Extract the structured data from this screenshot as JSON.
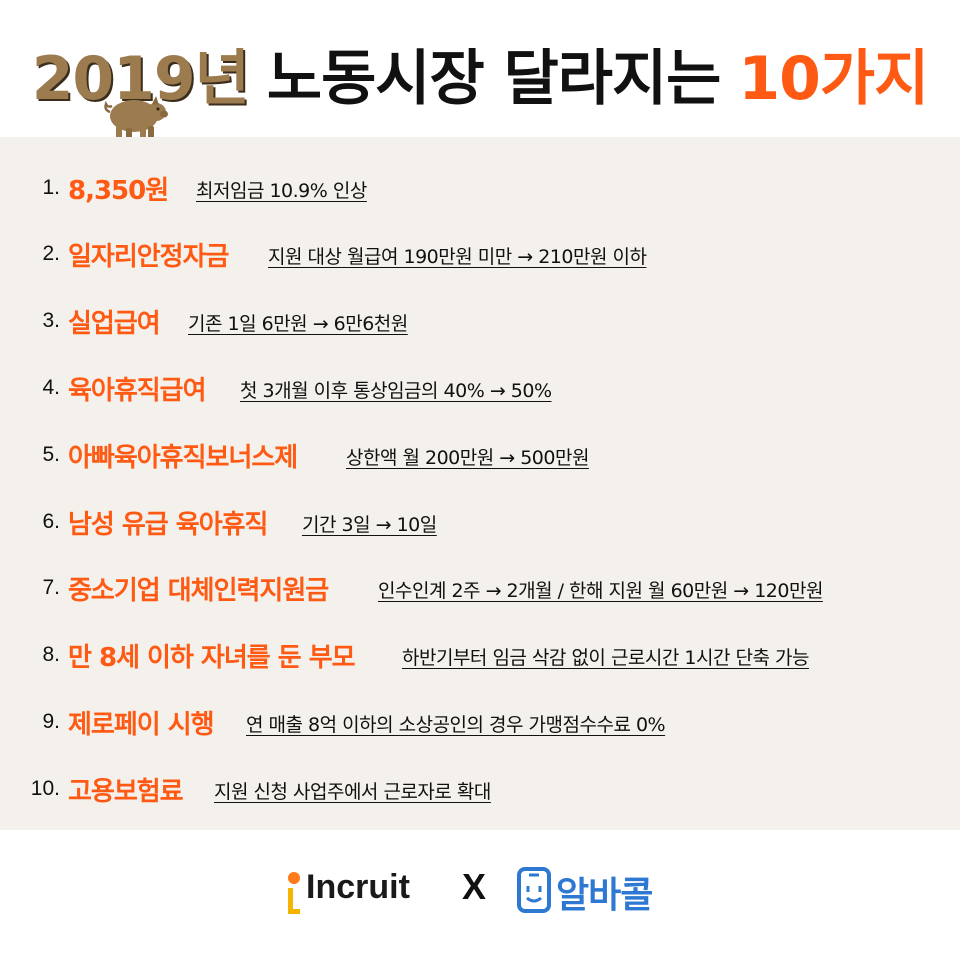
{
  "header": {
    "year": "2019년",
    "main": "노동시장 달라지는",
    "count": "10가지",
    "mascot_icon": "pig-icon"
  },
  "items": [
    {
      "num": "1.",
      "keyword": "8,350원",
      "desc": "최저임금 10.9% 인상"
    },
    {
      "num": "2.",
      "keyword": "일자리안정자금",
      "desc": "지원 대상 월급여 190만원 미만 → 210만원 이하"
    },
    {
      "num": "3.",
      "keyword": "실업급여",
      "desc": "기존 1일 6만원 → 6만6천원"
    },
    {
      "num": "4.",
      "keyword": "육아휴직급여",
      "desc": "첫 3개월 이후 통상임금의 40% → 50%"
    },
    {
      "num": "5.",
      "keyword": "아빠육아휴직보너스제",
      "desc": "상한액 월 200만원 → 500만원"
    },
    {
      "num": "6.",
      "keyword": "남성 유급 육아휴직",
      "desc": "기간 3일 → 10일"
    },
    {
      "num": "7.",
      "keyword": "중소기업 대체인력지원금",
      "desc": "인수인계 2주 → 2개월 / 한해 지원 월 60만원 → 120만원"
    },
    {
      "num": "8.",
      "keyword": "만 8세 이하 자녀를 둔 부모",
      "desc": "하반기부터 임금 삭감 없이 근로시간 1시간 단축 가능"
    },
    {
      "num": "9.",
      "keyword": "제로페이 시행",
      "desc": "연 매출 8억 이하의 소상공인의 경우 가맹점수수료 0%"
    },
    {
      "num": "10.",
      "keyword": "고용보험료",
      "desc": "지원 신청 사업주에서 근로자로 확대"
    }
  ],
  "footer": {
    "brand1": "Incruit",
    "separator": "X",
    "brand2": "알바콜",
    "brand2_icon": "phone-face-icon"
  },
  "colors": {
    "accent": "#ff5a14",
    "year": "#9c7b4f",
    "panel": "#f4f1ec",
    "alba": "#2d78d2"
  }
}
